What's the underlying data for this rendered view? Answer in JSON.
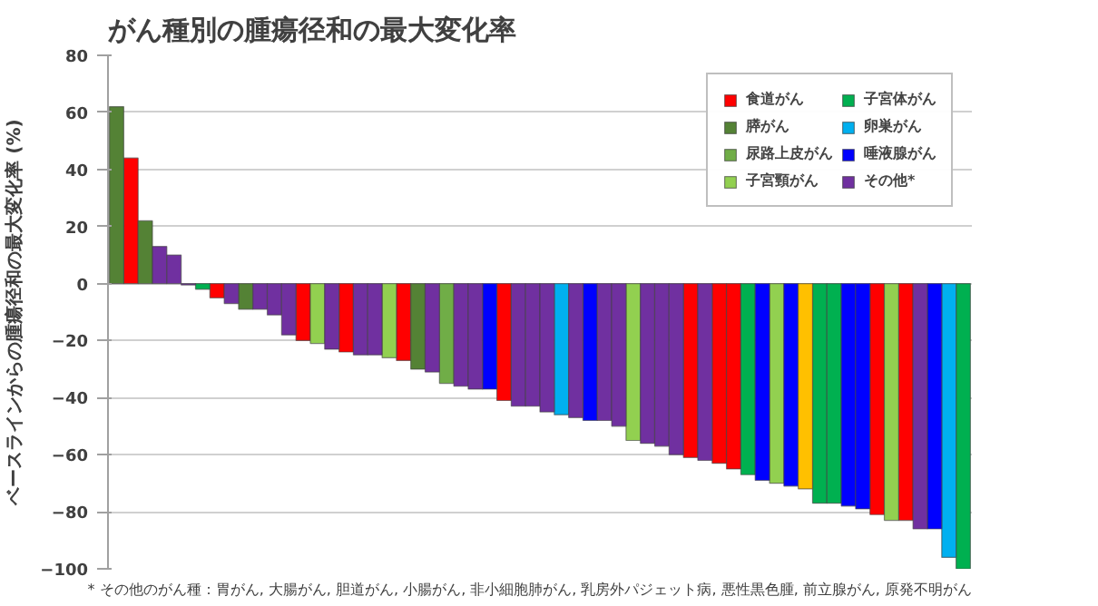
{
  "chart_data": {
    "type": "bar",
    "title": "がん種別の腫瘍径和の最大変化率",
    "ylabel": "ベースラインからの腫瘍径和の最大変化率 (%)",
    "annotations": [
      "* その他のがん種：胃がん, 大腸がん, 胆道がん, 小腸がん, 非小細胞肺がん, 乳房外パジェット病, 悪性黒色腫, 前立腺がん, 原発不明がん"
    ],
    "categories": [
      null,
      null,
      null,
      null,
      null,
      null,
      null,
      null,
      null,
      null,
      null,
      null,
      null,
      null,
      null,
      null,
      null,
      null,
      null,
      null,
      null,
      null,
      null,
      null,
      null,
      null,
      null,
      null,
      null,
      null,
      null,
      null,
      null,
      null,
      null,
      null,
      null,
      null,
      null,
      null,
      null,
      null,
      null,
      null,
      null,
      null,
      null,
      null,
      null,
      null,
      null,
      null,
      null,
      null,
      null,
      null,
      null,
      null,
      null,
      null
    ],
    "ylim": [
      -100,
      80
    ],
    "yticks": [
      -100,
      -80,
      -60,
      -40,
      -20,
      0,
      20,
      40,
      60,
      80
    ],
    "grid": "y",
    "legend": "top right",
    "tick_labels": "y",
    "series": [
      {
        "name": "食道がん",
        "color": "#ff0000",
        "values": [
          null,
          44,
          null,
          null,
          null,
          null,
          null,
          -5,
          null,
          null,
          null,
          null,
          null,
          -20,
          null,
          null,
          -24,
          null,
          null,
          null,
          -27,
          null,
          null,
          null,
          null,
          null,
          null,
          -41,
          null,
          null,
          null,
          null,
          null,
          null,
          null,
          null,
          null,
          null,
          null,
          null,
          -61,
          null,
          -63,
          -65,
          null,
          null,
          null,
          null,
          null,
          null,
          null,
          null,
          null,
          -81,
          null,
          -83,
          null,
          null,
          null,
          null
        ]
      },
      {
        "name": "膵がん",
        "color": "#548235",
        "values": [
          62,
          null,
          22,
          null,
          null,
          null,
          null,
          null,
          null,
          -9,
          null,
          null,
          null,
          null,
          null,
          null,
          null,
          null,
          null,
          null,
          null,
          -30,
          null,
          null,
          null,
          null,
          null,
          null,
          null,
          null,
          null,
          null,
          null,
          null,
          null,
          null,
          null,
          null,
          null,
          null,
          null,
          null,
          null,
          null,
          null,
          null,
          null,
          null,
          null,
          null,
          null,
          null,
          null,
          null,
          null,
          null,
          null,
          null,
          null,
          null
        ]
      },
      {
        "name": "尿路上皮がん",
        "color": "#70ad47",
        "values": [
          null,
          null,
          null,
          null,
          null,
          null,
          null,
          null,
          null,
          null,
          null,
          null,
          null,
          null,
          null,
          null,
          null,
          null,
          null,
          null,
          null,
          null,
          null,
          -35,
          null,
          null,
          null,
          null,
          null,
          null,
          null,
          null,
          null,
          null,
          null,
          null,
          null,
          null,
          null,
          null,
          null,
          null,
          null,
          null,
          null,
          null,
          null,
          null,
          null,
          null,
          null,
          null,
          null,
          null,
          null,
          null,
          null,
          null,
          null,
          null
        ]
      },
      {
        "name": "子宮頸がん",
        "color": "#92d050",
        "values": [
          null,
          null,
          null,
          null,
          null,
          null,
          null,
          null,
          null,
          null,
          null,
          null,
          null,
          null,
          -21,
          null,
          null,
          null,
          null,
          -26,
          null,
          null,
          null,
          null,
          null,
          null,
          null,
          null,
          null,
          null,
          null,
          null,
          null,
          null,
          null,
          null,
          -55,
          null,
          null,
          null,
          null,
          null,
          null,
          null,
          null,
          null,
          -70,
          null,
          null,
          null,
          null,
          null,
          null,
          null,
          -83,
          null,
          null,
          null,
          null,
          null
        ]
      },
      {
        "name": "子宮体がん",
        "color": "#00b050",
        "values": [
          null,
          null,
          null,
          null,
          null,
          null,
          -2,
          null,
          null,
          null,
          null,
          null,
          null,
          null,
          null,
          null,
          null,
          null,
          null,
          null,
          null,
          null,
          null,
          null,
          null,
          null,
          null,
          null,
          null,
          null,
          null,
          null,
          null,
          null,
          null,
          null,
          null,
          null,
          null,
          null,
          null,
          null,
          null,
          null,
          -67,
          null,
          null,
          null,
          null,
          -77,
          -77,
          null,
          null,
          null,
          null,
          null,
          null,
          null,
          null,
          -100
        ]
      },
      {
        "name": "卵巣がん",
        "color": "#00b0f0",
        "values": [
          null,
          null,
          null,
          null,
          null,
          null,
          null,
          null,
          null,
          null,
          null,
          null,
          null,
          null,
          null,
          null,
          null,
          null,
          null,
          null,
          null,
          null,
          null,
          null,
          null,
          null,
          null,
          null,
          null,
          null,
          null,
          -46,
          null,
          null,
          null,
          null,
          null,
          null,
          null,
          null,
          null,
          null,
          null,
          null,
          null,
          null,
          null,
          null,
          null,
          null,
          null,
          null,
          null,
          null,
          null,
          null,
          null,
          null,
          -96,
          null
        ]
      },
      {
        "name": "唾液腺がん",
        "color": "#0000ff",
        "values": [
          null,
          null,
          null,
          null,
          null,
          null,
          null,
          null,
          null,
          null,
          null,
          null,
          null,
          null,
          null,
          null,
          null,
          null,
          null,
          null,
          null,
          null,
          null,
          null,
          null,
          null,
          -37,
          null,
          null,
          null,
          null,
          null,
          null,
          -48,
          null,
          null,
          null,
          null,
          null,
          null,
          null,
          null,
          null,
          null,
          null,
          -69,
          null,
          -71,
          null,
          null,
          null,
          -78,
          -79,
          null,
          null,
          null,
          null,
          -86,
          null,
          null
        ]
      },
      {
        "name": "その他*",
        "color": "#7030a0",
        "values": [
          null,
          null,
          null,
          13,
          10,
          -0.5,
          null,
          null,
          -7,
          null,
          -9,
          -11,
          -18,
          null,
          null,
          -23,
          null,
          -25,
          -25,
          null,
          null,
          null,
          -31,
          null,
          -36,
          -37,
          null,
          null,
          -43,
          -43,
          -45,
          null,
          -47,
          null,
          -48,
          -50,
          null,
          -56,
          -57,
          -60,
          null,
          -62,
          null,
          null,
          null,
          null,
          null,
          null,
          null,
          null,
          null,
          null,
          null,
          null,
          null,
          null,
          -86,
          null,
          null,
          null
        ]
      },
      {
        "color": "#ffc000",
        "values": [
          null,
          null,
          null,
          null,
          null,
          null,
          null,
          null,
          null,
          null,
          null,
          null,
          null,
          null,
          null,
          null,
          null,
          null,
          null,
          null,
          null,
          null,
          null,
          null,
          null,
          null,
          null,
          null,
          null,
          null,
          null,
          null,
          null,
          null,
          null,
          null,
          null,
          null,
          null,
          null,
          null,
          null,
          null,
          null,
          null,
          null,
          null,
          null,
          -72,
          null,
          null,
          null,
          null,
          null,
          null,
          null,
          null,
          null,
          null,
          null
        ]
      }
    ]
  }
}
